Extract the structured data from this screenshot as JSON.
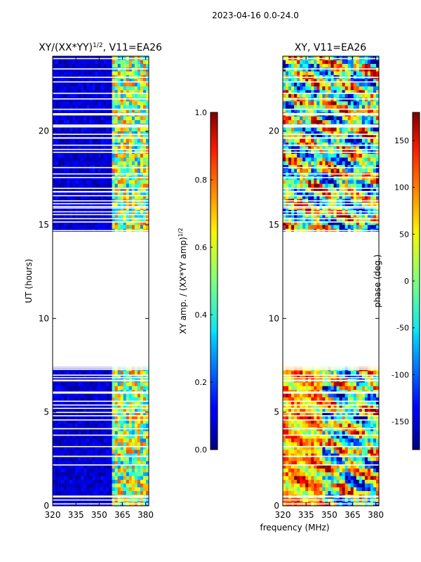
{
  "figure_title": "2023-04-16 0.0-24.0",
  "chart_data": [
    {
      "type": "heatmap",
      "title_main": "XY/(XX*YY)",
      "title_sup": "1/2",
      "title_tail": ", V11=EA26",
      "xlabel": "",
      "ylabel": "UT (hours)",
      "xlim": [
        320,
        382
      ],
      "ylim": [
        0,
        24
      ],
      "xticks": [
        320,
        335,
        350,
        365,
        380
      ],
      "yticks": [
        0,
        5,
        10,
        15,
        20
      ],
      "data_gap_ut": [
        7.5,
        14.6
      ],
      "colorbar": {
        "label_main": "XY amp. / (XX*YY amp)",
        "label_sup": "1/2",
        "range": [
          0.0,
          1.0
        ],
        "ticks": [
          "0.0",
          "0.2",
          "0.4",
          "0.6",
          "0.8",
          "1.0"
        ],
        "colormap": "jet"
      }
    },
    {
      "type": "heatmap",
      "title": "XY, V11=EA26",
      "xlabel": "frequency (MHz)",
      "ylabel": "",
      "xlim": [
        320,
        382
      ],
      "ylim": [
        0,
        24
      ],
      "xticks": [
        320,
        335,
        350,
        365,
        380
      ],
      "yticks": [
        0,
        5,
        10,
        15,
        20
      ],
      "data_gap_ut": [
        7.5,
        14.6
      ],
      "colorbar": {
        "label": "phase (deg.)",
        "range": [
          -180,
          180
        ],
        "ticks": [
          -150,
          -100,
          -50,
          0,
          50,
          100,
          150
        ],
        "colormap": "jet"
      }
    }
  ],
  "colors": {
    "low": "#00007f",
    "mid": "#7fff7f",
    "high": "#7f0000"
  }
}
